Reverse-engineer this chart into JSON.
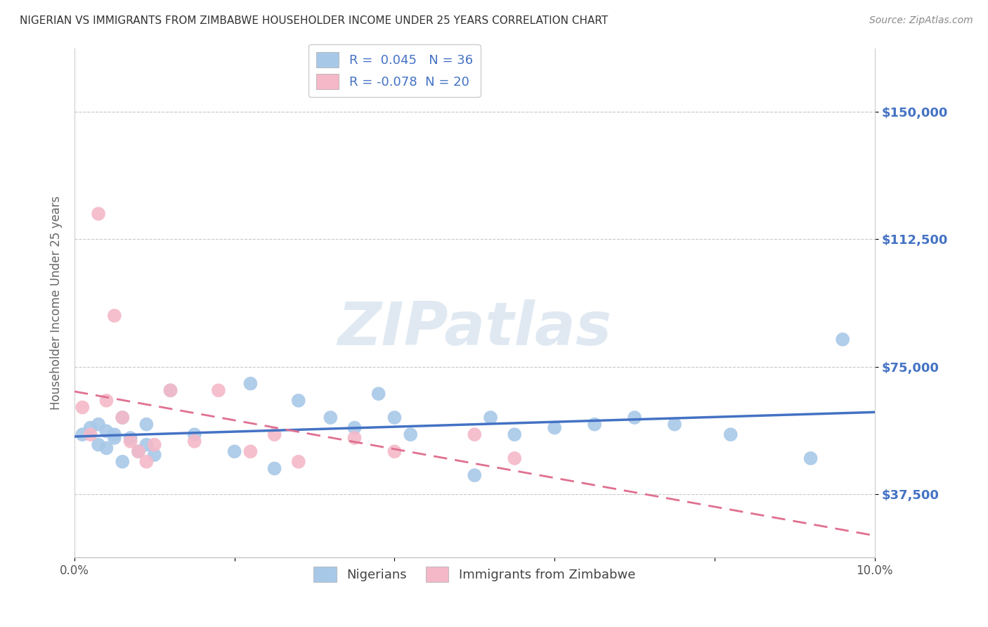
{
  "title": "NIGERIAN VS IMMIGRANTS FROM ZIMBABWE HOUSEHOLDER INCOME UNDER 25 YEARS CORRELATION CHART",
  "source": "Source: ZipAtlas.com",
  "ylabel": "Householder Income Under 25 years",
  "xlim": [
    0.0,
    0.1
  ],
  "ylim": [
    18750,
    168750
  ],
  "xticks": [
    0.0,
    0.02,
    0.04,
    0.06,
    0.08,
    0.1
  ],
  "xticklabels": [
    "0.0%",
    "",
    "",
    "",
    "",
    "10.0%"
  ],
  "ytick_positions": [
    37500,
    75000,
    112500,
    150000
  ],
  "ytick_labels": [
    "$37,500",
    "$75,000",
    "$112,500",
    "$150,000"
  ],
  "r_nigerian": 0.045,
  "n_nigerian": 36,
  "r_zimbabwe": -0.078,
  "n_zimbabwe": 20,
  "nigerian_color": "#a8c8e8",
  "zimbabwe_color": "#f4b8c8",
  "nigerian_line_color": "#4472c4",
  "zimbabwe_line_color": "#e07090",
  "watermark": "ZIPatlas",
  "nigerian_x": [
    0.001,
    0.002,
    0.003,
    0.003,
    0.004,
    0.004,
    0.005,
    0.005,
    0.006,
    0.006,
    0.007,
    0.008,
    0.009,
    0.009,
    0.01,
    0.012,
    0.015,
    0.02,
    0.022,
    0.025,
    0.028,
    0.032,
    0.035,
    0.038,
    0.04,
    0.042,
    0.05,
    0.052,
    0.055,
    0.06,
    0.065,
    0.07,
    0.075,
    0.082,
    0.092,
    0.096
  ],
  "nigerian_y": [
    55000,
    57000,
    52000,
    58000,
    56000,
    51000,
    54000,
    55000,
    60000,
    47000,
    54000,
    50000,
    58000,
    52000,
    49000,
    68000,
    55000,
    50000,
    70000,
    45000,
    65000,
    60000,
    57000,
    67000,
    60000,
    55000,
    43000,
    60000,
    55000,
    57000,
    58000,
    60000,
    58000,
    55000,
    48000,
    83000
  ],
  "zimbabwe_x": [
    0.001,
    0.002,
    0.003,
    0.004,
    0.005,
    0.006,
    0.007,
    0.008,
    0.009,
    0.01,
    0.012,
    0.015,
    0.018,
    0.022,
    0.025,
    0.028,
    0.035,
    0.04,
    0.05,
    0.055
  ],
  "zimbabwe_y": [
    63000,
    55000,
    120000,
    65000,
    90000,
    60000,
    53000,
    50000,
    47000,
    52000,
    68000,
    53000,
    68000,
    50000,
    55000,
    47000,
    54000,
    50000,
    55000,
    48000
  ]
}
